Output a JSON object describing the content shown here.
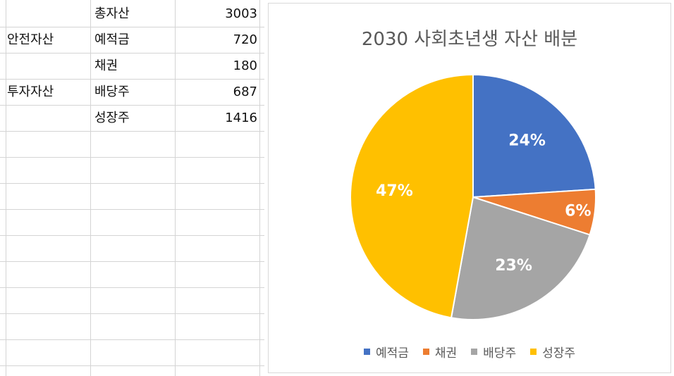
{
  "sheet": {
    "rows": [
      {
        "category": "",
        "item": "총자산",
        "value": "3003"
      },
      {
        "category": "안전자산",
        "item": "예적금",
        "value": "720"
      },
      {
        "category": "",
        "item": "채권",
        "value": "180"
      },
      {
        "category": "투자자산",
        "item": "배당주",
        "value": "687"
      },
      {
        "category": "",
        "item": "성장주",
        "value": "1416"
      }
    ]
  },
  "chart_data": {
    "type": "pie",
    "title": "2030 사회초년생 자산 배분",
    "categories": [
      "예적금",
      "채권",
      "배당주",
      "성장주"
    ],
    "values": [
      720,
      180,
      687,
      1416
    ],
    "data_labels": [
      "24%",
      "6%",
      "23%",
      "47%"
    ],
    "colors": [
      "#4472C4",
      "#ED7D31",
      "#A5A5A5",
      "#FFC000"
    ],
    "legend_position": "bottom"
  }
}
